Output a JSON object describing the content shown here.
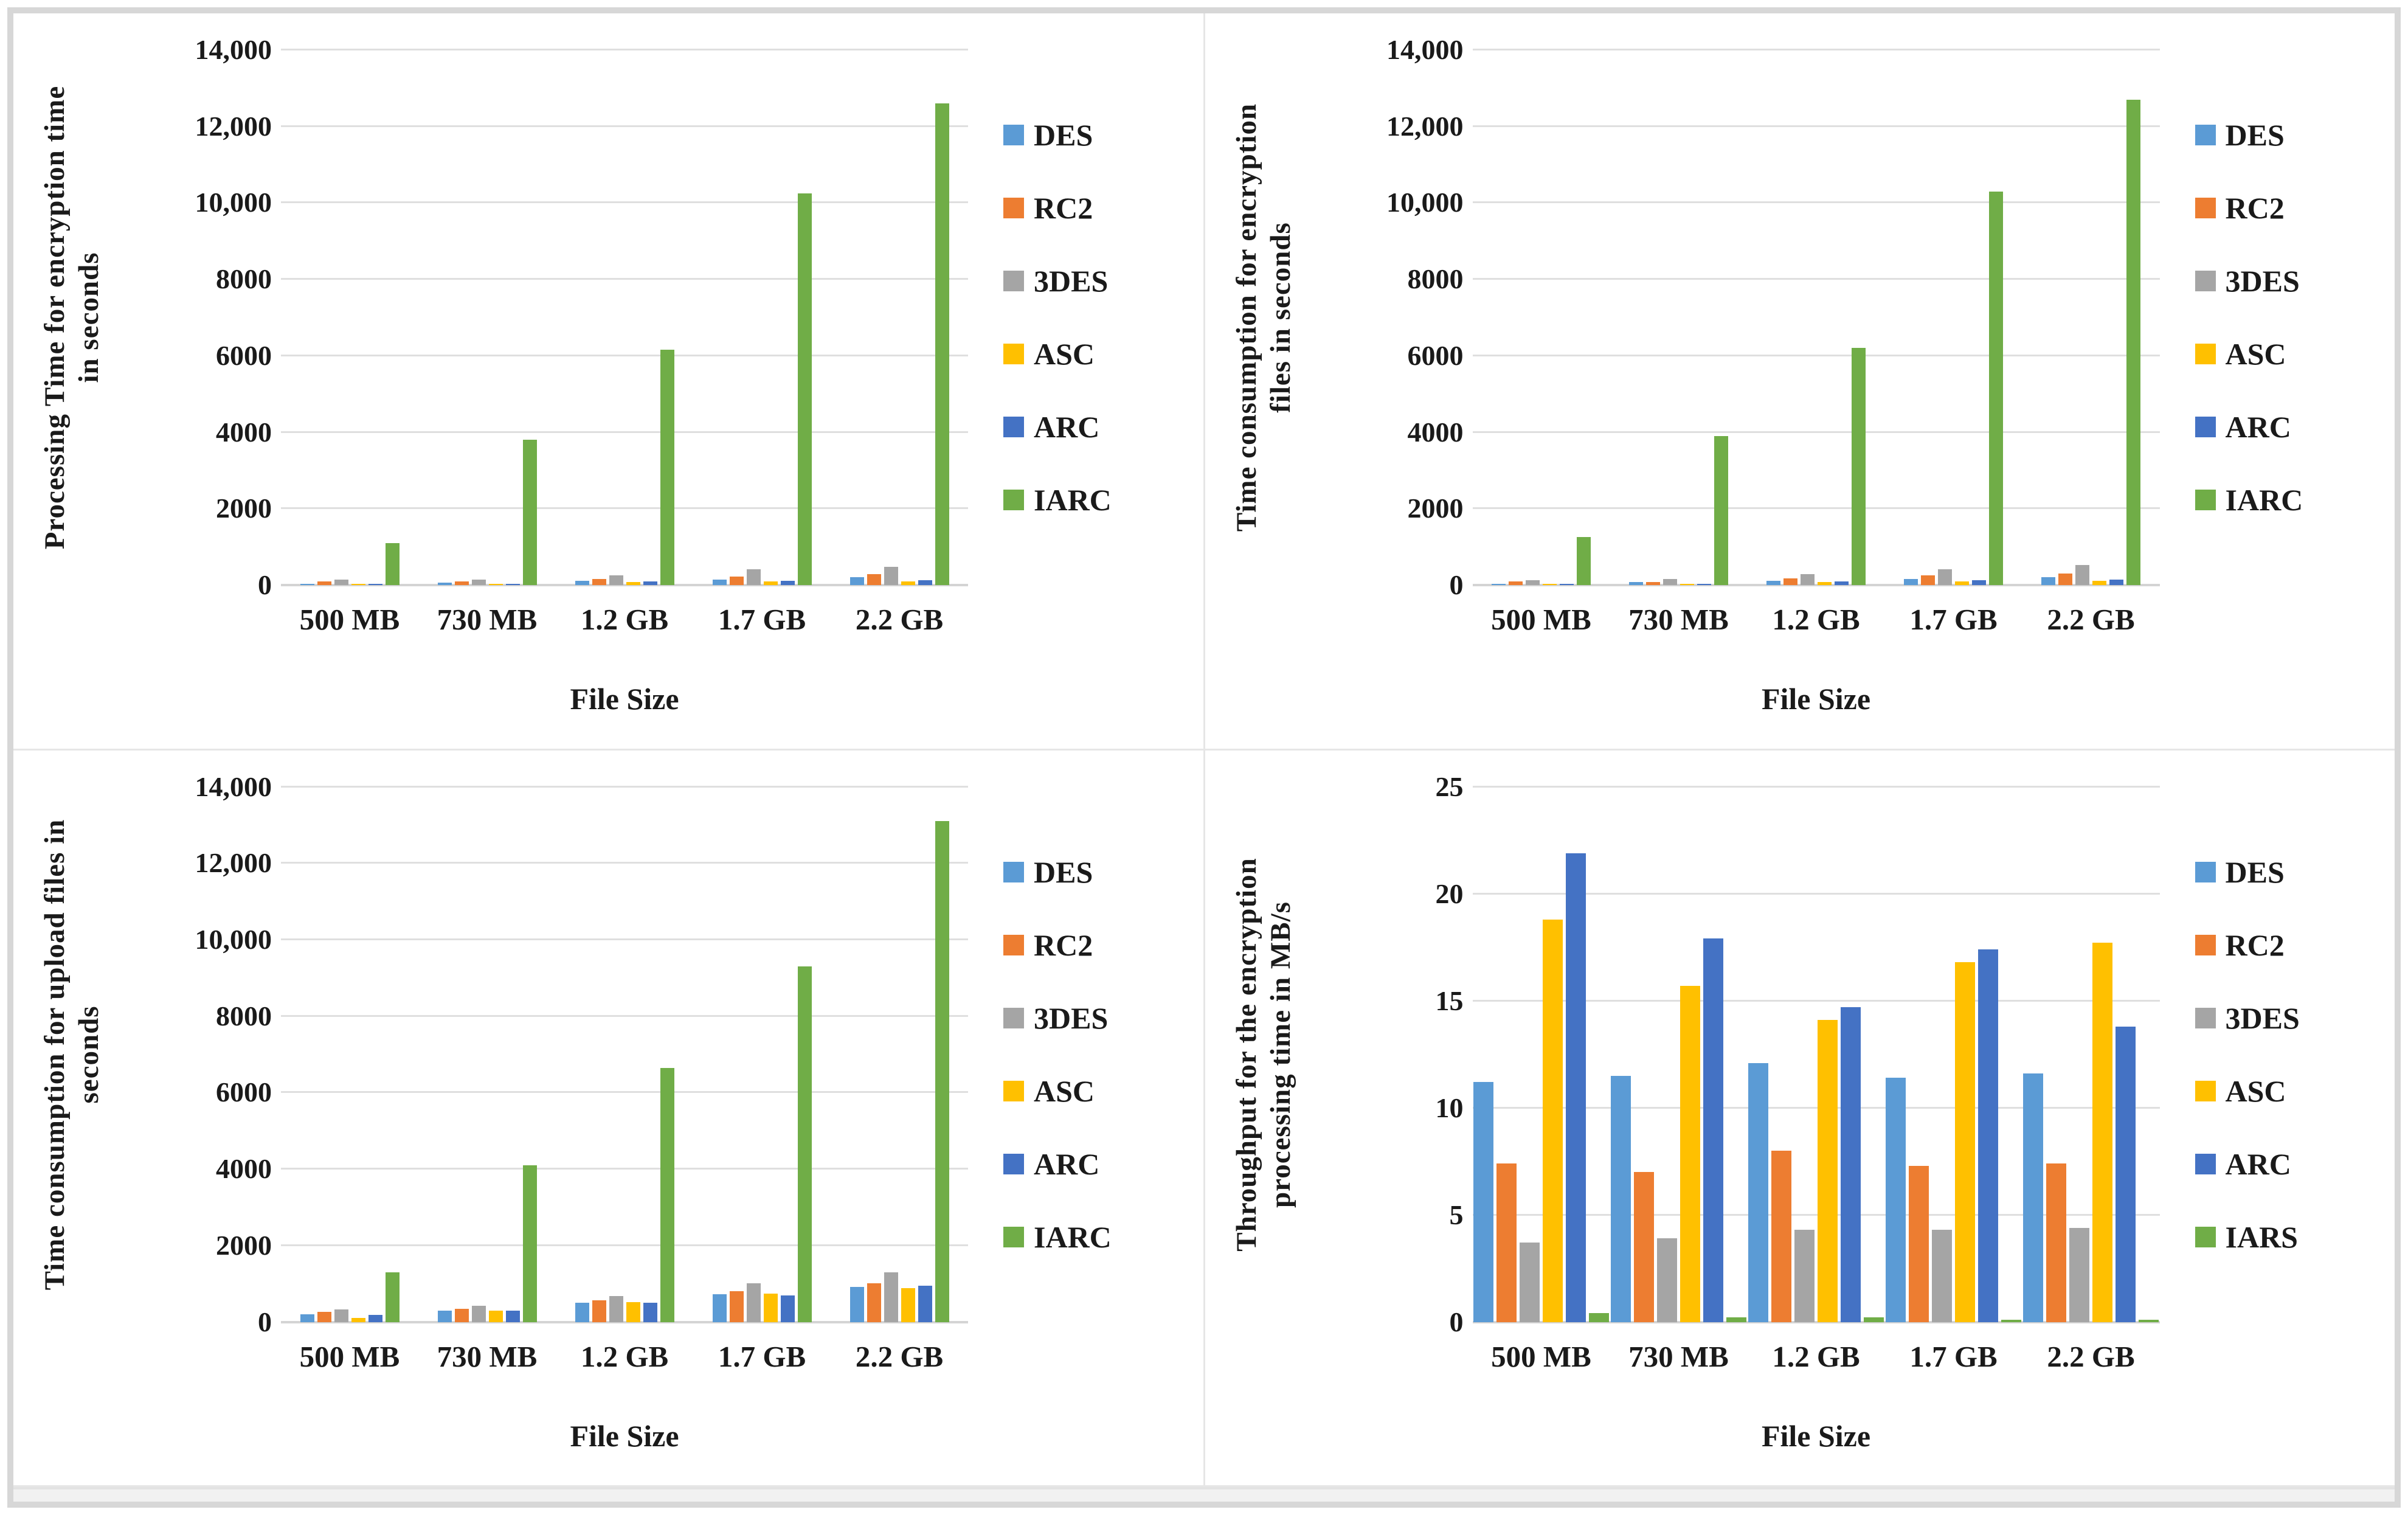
{
  "colors": {
    "DES": "#5B9BD5",
    "RC2": "#ED7D31",
    "3DES": "#A5A5A5",
    "ASC": "#FFC000",
    "ARC": "#4472C4",
    "IARC": "#70AD47",
    "gridline": "#dfdfdf",
    "axis_line": "#d4d4d4",
    "frame_border": "#d7d7d7"
  },
  "chart_data": [
    {
      "id": "encryption-processing-time",
      "type": "bar",
      "ylabel_lines": [
        "Processing Time for  encryption time",
        "in seconds"
      ],
      "xlabel": "File Size",
      "categories": [
        "500 MB",
        "730 MB",
        "1.2 GB",
        "1.7 GB",
        "2.2 GB"
      ],
      "ylim": [
        0,
        14000
      ],
      "yticks": [
        0,
        2000,
        4000,
        6000,
        8000,
        10000,
        12000,
        14000
      ],
      "ytick_labels": [
        "0",
        "2000",
        "4000",
        "6000",
        "8000",
        "10,000",
        "12,000",
        "14,000"
      ],
      "grid": true,
      "legend_position": "right",
      "series": [
        {
          "name": "DES",
          "color": "#5B9BD5",
          "values": [
            30,
            70,
            110,
            140,
            200
          ]
        },
        {
          "name": "RC2",
          "color": "#ED7D31",
          "values": [
            100,
            90,
            160,
            230,
            280
          ]
        },
        {
          "name": "3DES",
          "color": "#A5A5A5",
          "values": [
            140,
            150,
            260,
            410,
            480
          ]
        },
        {
          "name": "ASC",
          "color": "#FFC000",
          "values": [
            20,
            30,
            80,
            100,
            90
          ]
        },
        {
          "name": "ARC",
          "color": "#4472C4",
          "values": [
            25,
            35,
            90,
            110,
            130
          ]
        },
        {
          "name": "IARC",
          "color": "#70AD47",
          "values": [
            1100,
            3800,
            6150,
            10250,
            12600
          ]
        }
      ]
    },
    {
      "id": "encryption-time-consumption",
      "type": "bar",
      "ylabel_lines": [
        "Time consumption for encryption",
        "files in seconds"
      ],
      "xlabel": "File Size",
      "categories": [
        "500 MB",
        "730 MB",
        "1.2 GB",
        "1.7 GB",
        "2.2 GB"
      ],
      "ylim": [
        0,
        14000
      ],
      "yticks": [
        0,
        2000,
        4000,
        6000,
        8000,
        10000,
        12000,
        14000
      ],
      "ytick_labels": [
        "0",
        "2000",
        "4000",
        "6000",
        "8000",
        "10,000",
        "12,000",
        "14,000"
      ],
      "grid": true,
      "legend_position": "right",
      "series": [
        {
          "name": "DES",
          "color": "#5B9BD5",
          "values": [
            35,
            80,
            110,
            160,
            210
          ]
        },
        {
          "name": "RC2",
          "color": "#ED7D31",
          "values": [
            90,
            80,
            180,
            260,
            300
          ]
        },
        {
          "name": "3DES",
          "color": "#A5A5A5",
          "values": [
            130,
            160,
            290,
            420,
            520
          ]
        },
        {
          "name": "ASC",
          "color": "#FFC000",
          "values": [
            20,
            30,
            80,
            100,
            110
          ]
        },
        {
          "name": "ARC",
          "color": "#4472C4",
          "values": [
            25,
            40,
            90,
            120,
            150
          ]
        },
        {
          "name": "IARC",
          "color": "#70AD47",
          "values": [
            1250,
            3900,
            6200,
            10300,
            12700
          ]
        }
      ]
    },
    {
      "id": "upload-time-consumption",
      "type": "bar",
      "ylabel_lines": [
        "Time consumption for upload files in",
        "seconds"
      ],
      "xlabel": "File Size",
      "categories": [
        "500 MB",
        "730 MB",
        "1.2 GB",
        "1.7 GB",
        "2.2 GB"
      ],
      "ylim": [
        0,
        14000
      ],
      "yticks": [
        0,
        2000,
        4000,
        6000,
        8000,
        10000,
        12000,
        14000
      ],
      "ytick_labels": [
        "0",
        "2000",
        "4000",
        "6000",
        "8000",
        "10,000",
        "12,000",
        "14,000"
      ],
      "grid": true,
      "legend_position": "right",
      "series": [
        {
          "name": "DES",
          "color": "#5B9BD5",
          "values": [
            200,
            300,
            500,
            720,
            910
          ]
        },
        {
          "name": "RC2",
          "color": "#ED7D31",
          "values": [
            260,
            350,
            560,
            800,
            1010
          ]
        },
        {
          "name": "3DES",
          "color": "#A5A5A5",
          "values": [
            330,
            420,
            680,
            1010,
            1290
          ]
        },
        {
          "name": "ASC",
          "color": "#FFC000",
          "values": [
            110,
            290,
            510,
            740,
            890
          ]
        },
        {
          "name": "ARC",
          "color": "#4472C4",
          "values": [
            180,
            300,
            500,
            690,
            940
          ]
        },
        {
          "name": "IARC",
          "color": "#70AD47",
          "values": [
            1300,
            4100,
            6650,
            9300,
            13100
          ]
        }
      ]
    },
    {
      "id": "encryption-throughput",
      "type": "bar",
      "ylabel_lines": [
        "Throughput for the encryption",
        "processing time  in MB/s"
      ],
      "xlabel": "File Size",
      "categories": [
        "500 MB",
        "730 MB",
        "1.2 GB",
        "1.7 GB",
        "2.2 GB"
      ],
      "ylim": [
        0,
        25
      ],
      "yticks": [
        0,
        5,
        10,
        15,
        20,
        25
      ],
      "ytick_labels": [
        "0",
        "5",
        "10",
        "15",
        "20",
        "25"
      ],
      "grid": true,
      "legend_position": "right",
      "series": [
        {
          "name": "DES",
          "color": "#5B9BD5",
          "values": [
            11.2,
            11.5,
            12.1,
            11.4,
            11.6
          ]
        },
        {
          "name": "RC2",
          "color": "#ED7D31",
          "values": [
            7.4,
            7.0,
            8.0,
            7.3,
            7.4
          ]
        },
        {
          "name": "3DES",
          "color": "#A5A5A5",
          "values": [
            3.7,
            3.9,
            4.3,
            4.3,
            4.4
          ]
        },
        {
          "name": "ASC",
          "color": "#FFC000",
          "values": [
            18.8,
            15.7,
            14.1,
            16.8,
            17.7
          ]
        },
        {
          "name": "ARC",
          "color": "#4472C4",
          "values": [
            21.9,
            17.9,
            14.7,
            17.4,
            13.8
          ]
        },
        {
          "name": "IARS",
          "color": "#70AD47",
          "values": [
            0.4,
            0.2,
            0.2,
            0.1,
            0.1
          ]
        }
      ]
    }
  ]
}
